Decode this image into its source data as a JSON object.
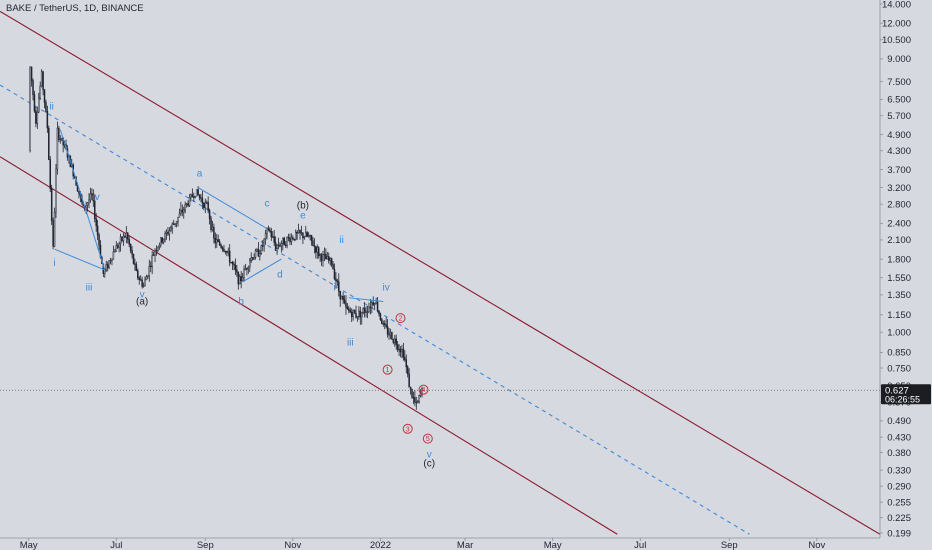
{
  "chart_data": {
    "type": "candlestick",
    "title": "BAKE / TetherUS, 1D, BINANCE",
    "y_scale": "log",
    "ylim": [
      0.199,
      14.0
    ],
    "y_ticks": [
      "14.000",
      "12.000",
      "10.500",
      "9.000",
      "7.500",
      "6.500",
      "5.700",
      "4.900",
      "4.300",
      "3.700",
      "3.200",
      "2.800",
      "2.400",
      "2.100",
      "1.800",
      "1.550",
      "1.350",
      "1.150",
      "1.000",
      "0.850",
      "0.750",
      "0.650",
      "0.570",
      "0.490",
      "0.430",
      "0.380",
      "0.330",
      "0.290",
      "0.255",
      "0.225",
      "0.199"
    ],
    "x_ticks": [
      "May",
      "Jul",
      "Sep",
      "Nov",
      "2022",
      "Mar",
      "May",
      "Jul",
      "Sep",
      "Nov"
    ],
    "x_tick_dates": [
      "2021-05-01",
      "2021-07-01",
      "2021-09-01",
      "2021-11-01",
      "2022-01-01",
      "2022-03-01",
      "2022-05-01",
      "2022-07-01",
      "2022-09-01",
      "2022-11-01"
    ],
    "xlim": [
      "2021-04-11",
      "2022-12-15"
    ],
    "last_price": {
      "value": "0.627",
      "countdown": "06:26:55",
      "color": "#f23645"
    },
    "candle_colors": {
      "up": "#1f2430",
      "down": "#1f2430"
    },
    "price_path": [
      {
        "date": "2021-05-01",
        "price": 4.3
      },
      {
        "date": "2021-05-02",
        "price": 8.4
      },
      {
        "date": "2021-05-06",
        "price": 5.5
      },
      {
        "date": "2021-05-10",
        "price": 7.9
      },
      {
        "date": "2021-05-14",
        "price": 5.2
      },
      {
        "date": "2021-05-18",
        "price": 1.95
      },
      {
        "date": "2021-05-21",
        "price": 5.0
      },
      {
        "date": "2021-05-27",
        "price": 4.3
      },
      {
        "date": "2021-06-02",
        "price": 3.5
      },
      {
        "date": "2021-06-08",
        "price": 2.7
      },
      {
        "date": "2021-06-14",
        "price": 3.0
      },
      {
        "date": "2021-06-22",
        "price": 1.6
      },
      {
        "date": "2021-06-30",
        "price": 1.95
      },
      {
        "date": "2021-07-08",
        "price": 2.2
      },
      {
        "date": "2021-07-15",
        "price": 1.6
      },
      {
        "date": "2021-07-20",
        "price": 1.45
      },
      {
        "date": "2021-07-28",
        "price": 1.95
      },
      {
        "date": "2021-08-05",
        "price": 2.2
      },
      {
        "date": "2021-08-15",
        "price": 2.6
      },
      {
        "date": "2021-08-25",
        "price": 3.1
      },
      {
        "date": "2021-09-03",
        "price": 2.7
      },
      {
        "date": "2021-09-07",
        "price": 2.1
      },
      {
        "date": "2021-09-15",
        "price": 1.95
      },
      {
        "date": "2021-09-25",
        "price": 1.5
      },
      {
        "date": "2021-10-02",
        "price": 1.8
      },
      {
        "date": "2021-10-10",
        "price": 1.95
      },
      {
        "date": "2021-10-15",
        "price": 2.3
      },
      {
        "date": "2021-10-20",
        "price": 2.0
      },
      {
        "date": "2021-10-28",
        "price": 2.1
      },
      {
        "date": "2021-11-05",
        "price": 2.2
      },
      {
        "date": "2021-11-12",
        "price": 2.15
      },
      {
        "date": "2021-11-20",
        "price": 1.85
      },
      {
        "date": "2021-11-28",
        "price": 1.75
      },
      {
        "date": "2021-12-03",
        "price": 1.4
      },
      {
        "date": "2021-12-08",
        "price": 1.2
      },
      {
        "date": "2021-12-15",
        "price": 1.15
      },
      {
        "date": "2021-12-22",
        "price": 1.2
      },
      {
        "date": "2021-12-28",
        "price": 1.3
      },
      {
        "date": "2022-01-03",
        "price": 1.05
      },
      {
        "date": "2022-01-10",
        "price": 0.95
      },
      {
        "date": "2022-01-17",
        "price": 0.85
      },
      {
        "date": "2022-01-22",
        "price": 0.62
      },
      {
        "date": "2022-01-26",
        "price": 0.55
      },
      {
        "date": "2022-01-30",
        "price": 0.627
      }
    ],
    "channel_lines": [
      {
        "name": "upper-channel",
        "color": "#8b1a2b",
        "style": "solid",
        "points": [
          {
            "date": "2021-04-11",
            "price": 13.2
          },
          {
            "date": "2022-12-15",
            "price": 0.197
          }
        ]
      },
      {
        "name": "lower-channel",
        "color": "#8b1a2b",
        "style": "solid",
        "points": [
          {
            "date": "2021-04-11",
            "price": 4.1
          },
          {
            "date": "2022-06-15",
            "price": 0.197
          }
        ]
      },
      {
        "name": "mid-channel",
        "color": "#3f8ad8",
        "style": "dashed",
        "points": [
          {
            "date": "2021-04-11",
            "price": 7.3
          },
          {
            "date": "2022-09-15",
            "price": 0.197
          }
        ]
      }
    ],
    "wave_lines": [
      {
        "color": "#3f8ad8",
        "points": [
          {
            "date": "2021-05-19",
            "price": 1.95
          },
          {
            "date": "2021-06-23",
            "price": 1.65
          }
        ]
      },
      {
        "color": "#3f8ad8",
        "points": [
          {
            "date": "2021-05-23",
            "price": 5.1
          },
          {
            "date": "2021-06-23",
            "price": 1.65
          }
        ]
      },
      {
        "color": "#3f8ad8",
        "points": [
          {
            "date": "2021-08-27",
            "price": 3.2
          },
          {
            "date": "2021-10-14",
            "price": 2.3
          }
        ]
      },
      {
        "color": "#3f8ad8",
        "points": [
          {
            "date": "2021-09-27",
            "price": 1.5
          },
          {
            "date": "2021-10-24",
            "price": 1.8
          }
        ]
      },
      {
        "color": "#3f8ad8",
        "points": [
          {
            "date": "2021-12-10",
            "price": 1.32
          },
          {
            "date": "2022-01-03",
            "price": 1.28
          }
        ]
      }
    ],
    "annotations": [
      {
        "text": "ii",
        "date": "2021-05-17",
        "price": 6.0,
        "color": "#3f8ad8"
      },
      {
        "text": "i",
        "date": "2021-05-19",
        "price": 1.7,
        "color": "#3f8ad8"
      },
      {
        "text": "iv",
        "date": "2021-06-17",
        "price": 2.9,
        "color": "#3f8ad8"
      },
      {
        "text": "iii",
        "date": "2021-06-12",
        "price": 1.4,
        "color": "#3f8ad8"
      },
      {
        "text": "v",
        "date": "2021-07-19",
        "price": 1.32,
        "color": "#3f8ad8"
      },
      {
        "text": "(a)",
        "date": "2021-07-19",
        "price": 1.25,
        "color": "#1f2430"
      },
      {
        "text": "a",
        "date": "2021-08-28",
        "price": 3.5,
        "color": "#3f8ad8"
      },
      {
        "text": "b",
        "date": "2021-09-26",
        "price": 1.25,
        "color": "#3f8ad8"
      },
      {
        "text": "c",
        "date": "2021-10-14",
        "price": 2.75,
        "color": "#3f8ad8"
      },
      {
        "text": "d",
        "date": "2021-10-23",
        "price": 1.55,
        "color": "#3f8ad8"
      },
      {
        "text": "(b)",
        "date": "2021-11-08",
        "price": 2.7,
        "color": "#1f2430"
      },
      {
        "text": "e",
        "date": "2021-11-08",
        "price": 2.5,
        "color": "#3f8ad8"
      },
      {
        "text": "ii",
        "date": "2021-12-05",
        "price": 2.05,
        "color": "#3f8ad8"
      },
      {
        "text": "i",
        "date": "2021-11-30",
        "price": 1.4,
        "color": "#3f8ad8"
      },
      {
        "text": "iv",
        "date": "2022-01-05",
        "price": 1.4,
        "color": "#3f8ad8"
      },
      {
        "text": "iii",
        "date": "2021-12-11",
        "price": 0.9,
        "color": "#3f8ad8"
      },
      {
        "text": "v",
        "date": "2022-02-04",
        "price": 0.365,
        "color": "#3f8ad8"
      },
      {
        "text": "(c)",
        "date": "2022-02-04",
        "price": 0.34,
        "color": "#1f2430"
      }
    ],
    "circled_annotations": [
      {
        "text": "2",
        "date": "2022-01-15",
        "price": 1.12,
        "color": "#c0303c"
      },
      {
        "text": "1",
        "date": "2022-01-06",
        "price": 0.74,
        "color": "#c0303c"
      },
      {
        "text": "4",
        "date": "2022-01-31",
        "price": 0.63,
        "color": "#c0303c"
      },
      {
        "text": "3",
        "date": "2022-01-20",
        "price": 0.46,
        "color": "#c0303c"
      },
      {
        "text": "5",
        "date": "2022-02-03",
        "price": 0.425,
        "color": "#c0303c"
      }
    ],
    "grid": false
  }
}
